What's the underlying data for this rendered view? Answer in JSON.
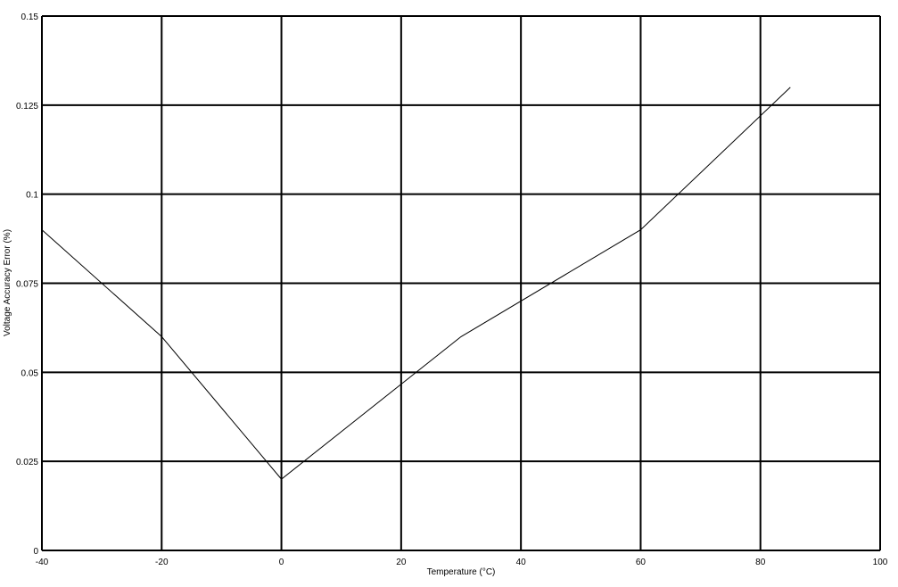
{
  "chart_data": {
    "type": "line",
    "title": "",
    "xlabel": "Temperature (°C)",
    "ylabel": "Voltage Accuracy Error (%)",
    "xlim": [
      -40,
      100
    ],
    "ylim": [
      0,
      0.15
    ],
    "grid": true,
    "x_ticks": [
      -40,
      -20,
      0,
      20,
      40,
      60,
      80,
      100
    ],
    "x_tick_labels": [
      "-40",
      "-20",
      "0",
      "20",
      "40",
      "60",
      "80",
      "100"
    ],
    "y_ticks": [
      0,
      0.025,
      0.05,
      0.075,
      0.1,
      0.125,
      0.15
    ],
    "y_tick_labels": [
      "0",
      "0.025",
      "0.05",
      "0.075",
      "0.1",
      "0.125",
      "0.15"
    ],
    "series": [
      {
        "x": [
          -40,
          -20,
          0,
          30,
          60,
          85
        ],
        "y": [
          0.09,
          0.06,
          0.02,
          0.06,
          0.09,
          0.13
        ],
        "color": "#000000"
      }
    ]
  }
}
